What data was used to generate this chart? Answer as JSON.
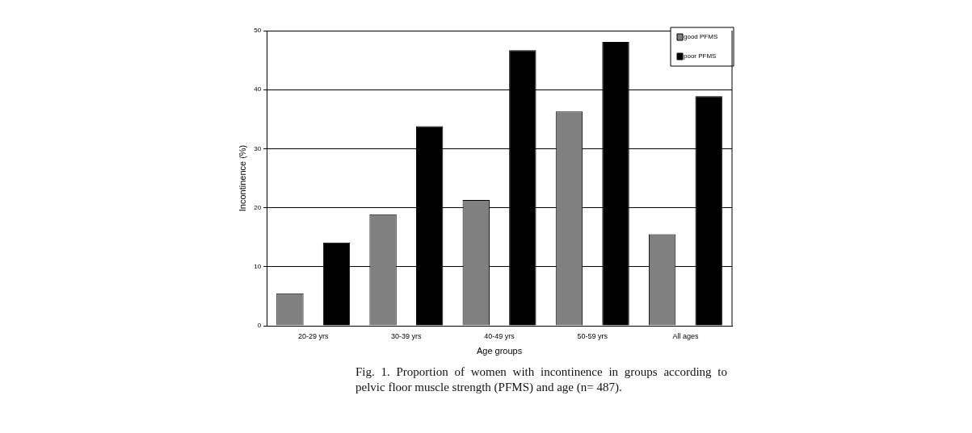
{
  "chart_data": {
    "type": "bar",
    "xlabel": "Age groups",
    "ylabel": "Incontinence (%)",
    "categories": [
      "20-29 yrs",
      "30-39 yrs",
      "40-49 yrs",
      "50-59 yrs",
      "All ages"
    ],
    "series": [
      {
        "name": "good PFMS",
        "color": "#808080",
        "values": [
          5.5,
          18.9,
          21.3,
          36.3,
          15.5
        ]
      },
      {
        "name": "poor PFMS",
        "color": "#000000",
        "values": [
          14.1,
          33.8,
          46.7,
          48.1,
          38.9
        ]
      }
    ],
    "ylim": [
      0,
      50
    ],
    "yticks": [
      0,
      10,
      20,
      30,
      40,
      50
    ],
    "grid": "y",
    "legend": "top right",
    "annotations": [
      "Fig. 1. Proportion of women with incontinence in groups according to pelvic floor muscle strength (PFMS) and age (n= 487)."
    ]
  }
}
